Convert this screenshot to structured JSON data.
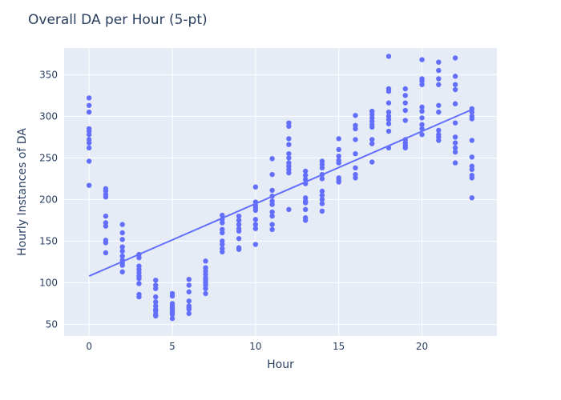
{
  "chart_data": {
    "type": "scatter",
    "title": "Overall DA per Hour (5-pt)",
    "xlabel": "Hour",
    "ylabel": "Hourly Instances of DA",
    "xlim": [
      -1.5,
      24.5
    ],
    "ylim": [
      36,
      382
    ],
    "xticks": [
      0,
      5,
      10,
      15,
      20
    ],
    "yticks": [
      50,
      100,
      150,
      200,
      250,
      300,
      350
    ],
    "grid": true,
    "legend": "none",
    "colors": {
      "marker": "#636efa",
      "trend": "#636efa",
      "plot_bg": "#e5ecf6",
      "grid": "#ffffff",
      "text": "#2a3f5f"
    },
    "trendline": {
      "x": [
        0,
        23
      ],
      "y": [
        108,
        308
      ]
    },
    "points": [
      [
        0,
        322
      ],
      [
        0,
        313
      ],
      [
        0,
        305
      ],
      [
        0,
        285
      ],
      [
        0,
        282
      ],
      [
        0,
        278
      ],
      [
        0,
        272
      ],
      [
        0,
        268
      ],
      [
        0,
        262
      ],
      [
        0,
        246
      ],
      [
        0,
        217
      ],
      [
        1,
        213
      ],
      [
        1,
        210
      ],
      [
        1,
        206
      ],
      [
        1,
        203
      ],
      [
        1,
        180
      ],
      [
        1,
        172
      ],
      [
        1,
        168
      ],
      [
        1,
        151
      ],
      [
        1,
        148
      ],
      [
        1,
        136
      ],
      [
        2,
        170
      ],
      [
        2,
        160
      ],
      [
        2,
        152
      ],
      [
        2,
        143
      ],
      [
        2,
        138
      ],
      [
        2,
        132
      ],
      [
        2,
        127
      ],
      [
        2,
        124
      ],
      [
        2,
        121
      ],
      [
        2,
        113
      ],
      [
        3,
        134
      ],
      [
        3,
        130
      ],
      [
        3,
        120
      ],
      [
        3,
        116
      ],
      [
        3,
        112
      ],
      [
        3,
        108
      ],
      [
        3,
        105
      ],
      [
        3,
        99
      ],
      [
        3,
        86
      ],
      [
        3,
        83
      ],
      [
        4,
        103
      ],
      [
        4,
        97
      ],
      [
        4,
        93
      ],
      [
        4,
        83
      ],
      [
        4,
        77
      ],
      [
        4,
        72
      ],
      [
        4,
        68
      ],
      [
        4,
        66
      ],
      [
        4,
        62
      ],
      [
        4,
        60
      ],
      [
        5,
        87
      ],
      [
        5,
        84
      ],
      [
        5,
        75
      ],
      [
        5,
        72
      ],
      [
        5,
        70
      ],
      [
        5,
        68
      ],
      [
        5,
        65
      ],
      [
        5,
        64
      ],
      [
        5,
        62
      ],
      [
        5,
        57
      ],
      [
        6,
        104
      ],
      [
        6,
        97
      ],
      [
        6,
        89
      ],
      [
        6,
        78
      ],
      [
        6,
        72
      ],
      [
        6,
        70
      ],
      [
        6,
        68
      ],
      [
        6,
        63
      ],
      [
        7,
        126
      ],
      [
        7,
        118
      ],
      [
        7,
        114
      ],
      [
        7,
        110
      ],
      [
        7,
        106
      ],
      [
        7,
        103
      ],
      [
        7,
        100
      ],
      [
        7,
        97
      ],
      [
        7,
        93
      ],
      [
        7,
        87
      ],
      [
        8,
        181
      ],
      [
        8,
        176
      ],
      [
        8,
        172
      ],
      [
        8,
        164
      ],
      [
        8,
        160
      ],
      [
        8,
        150
      ],
      [
        8,
        146
      ],
      [
        8,
        141
      ],
      [
        8,
        137
      ],
      [
        9,
        180
      ],
      [
        9,
        175
      ],
      [
        9,
        170
      ],
      [
        9,
        165
      ],
      [
        9,
        162
      ],
      [
        9,
        153
      ],
      [
        9,
        142
      ],
      [
        9,
        140
      ],
      [
        10,
        215
      ],
      [
        10,
        197
      ],
      [
        10,
        193
      ],
      [
        10,
        190
      ],
      [
        10,
        187
      ],
      [
        10,
        176
      ],
      [
        10,
        170
      ],
      [
        10,
        165
      ],
      [
        10,
        146
      ],
      [
        11,
        249
      ],
      [
        11,
        230
      ],
      [
        11,
        211
      ],
      [
        11,
        204
      ],
      [
        11,
        198
      ],
      [
        11,
        194
      ],
      [
        11,
        185
      ],
      [
        11,
        180
      ],
      [
        11,
        170
      ],
      [
        11,
        164
      ],
      [
        12,
        292
      ],
      [
        12,
        288
      ],
      [
        12,
        273
      ],
      [
        12,
        266
      ],
      [
        12,
        255
      ],
      [
        12,
        250
      ],
      [
        12,
        244
      ],
      [
        12,
        240
      ],
      [
        12,
        236
      ],
      [
        12,
        232
      ],
      [
        12,
        188
      ],
      [
        13,
        234
      ],
      [
        13,
        229
      ],
      [
        13,
        224
      ],
      [
        13,
        219
      ],
      [
        13,
        202
      ],
      [
        13,
        198
      ],
      [
        13,
        196
      ],
      [
        13,
        188
      ],
      [
        13,
        178
      ],
      [
        13,
        175
      ],
      [
        14,
        246
      ],
      [
        14,
        242
      ],
      [
        14,
        238
      ],
      [
        14,
        230
      ],
      [
        14,
        225
      ],
      [
        14,
        210
      ],
      [
        14,
        205
      ],
      [
        14,
        200
      ],
      [
        14,
        195
      ],
      [
        14,
        186
      ],
      [
        15,
        273
      ],
      [
        15,
        260
      ],
      [
        15,
        252
      ],
      [
        15,
        247
      ],
      [
        15,
        244
      ],
      [
        15,
        226
      ],
      [
        15,
        223
      ],
      [
        15,
        221
      ],
      [
        16,
        301
      ],
      [
        16,
        289
      ],
      [
        16,
        285
      ],
      [
        16,
        272
      ],
      [
        16,
        255
      ],
      [
        16,
        238
      ],
      [
        16,
        230
      ],
      [
        16,
        226
      ],
      [
        17,
        306
      ],
      [
        17,
        302
      ],
      [
        17,
        298
      ],
      [
        17,
        294
      ],
      [
        17,
        290
      ],
      [
        17,
        287
      ],
      [
        17,
        272
      ],
      [
        17,
        267
      ],
      [
        17,
        245
      ],
      [
        18,
        372
      ],
      [
        18,
        333
      ],
      [
        18,
        330
      ],
      [
        18,
        316
      ],
      [
        18,
        305
      ],
      [
        18,
        300
      ],
      [
        18,
        296
      ],
      [
        18,
        291
      ],
      [
        18,
        282
      ],
      [
        18,
        262
      ],
      [
        19,
        333
      ],
      [
        19,
        325
      ],
      [
        19,
        316
      ],
      [
        19,
        307
      ],
      [
        19,
        295
      ],
      [
        19,
        272
      ],
      [
        19,
        268
      ],
      [
        19,
        265
      ],
      [
        19,
        262
      ],
      [
        20,
        368
      ],
      [
        20,
        345
      ],
      [
        20,
        342
      ],
      [
        20,
        338
      ],
      [
        20,
        311
      ],
      [
        20,
        306
      ],
      [
        20,
        298
      ],
      [
        20,
        290
      ],
      [
        20,
        285
      ],
      [
        20,
        278
      ],
      [
        21,
        365
      ],
      [
        21,
        355
      ],
      [
        21,
        345
      ],
      [
        21,
        338
      ],
      [
        21,
        313
      ],
      [
        21,
        305
      ],
      [
        21,
        283
      ],
      [
        21,
        278
      ],
      [
        21,
        275
      ],
      [
        21,
        271
      ],
      [
        22,
        370
      ],
      [
        22,
        348
      ],
      [
        22,
        338
      ],
      [
        22,
        332
      ],
      [
        22,
        315
      ],
      [
        22,
        292
      ],
      [
        22,
        275
      ],
      [
        22,
        268
      ],
      [
        22,
        262
      ],
      [
        22,
        257
      ],
      [
        22,
        244
      ],
      [
        23,
        309
      ],
      [
        23,
        305
      ],
      [
        23,
        300
      ],
      [
        23,
        297
      ],
      [
        23,
        271
      ],
      [
        23,
        251
      ],
      [
        23,
        240
      ],
      [
        23,
        236
      ],
      [
        23,
        229
      ],
      [
        23,
        226
      ],
      [
        23,
        202
      ]
    ]
  }
}
